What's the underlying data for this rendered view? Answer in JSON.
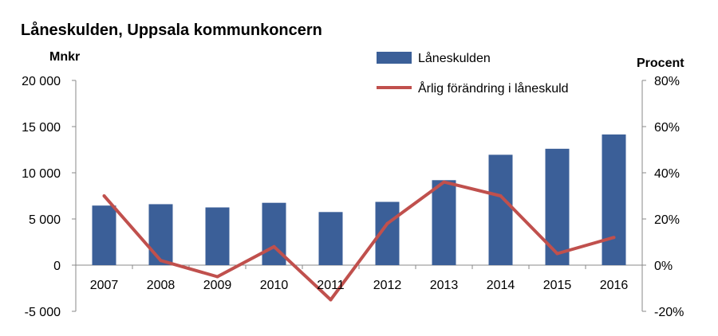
{
  "chart_data": {
    "type": "bar",
    "title": "Låneskulden, Uppsala kommunkoncern",
    "ylabel_left": "Mnkr",
    "ylabel_right": "Procent",
    "categories": [
      "2007",
      "2008",
      "2009",
      "2010",
      "2011",
      "2012",
      "2013",
      "2014",
      "2015",
      "2016"
    ],
    "series": [
      {
        "name": "Låneskulden",
        "type": "bar",
        "axis": "left",
        "color": "#3b5f98",
        "values": [
          6450,
          6600,
          6250,
          6750,
          5750,
          6850,
          9200,
          11950,
          12600,
          14150
        ]
      },
      {
        "name": "Årlig förändring i låneskuld",
        "type": "line",
        "axis": "right",
        "color": "#c0504d",
        "values": [
          30,
          2,
          -5,
          8,
          -15,
          18,
          36,
          30,
          5,
          12
        ]
      }
    ],
    "y_left": {
      "lim": [
        -5000,
        20000
      ],
      "ticks": [
        -5000,
        0,
        5000,
        10000,
        15000,
        20000
      ],
      "tick_labels": [
        "-5 000",
        "0",
        "5 000",
        "10 000",
        "15 000",
        "20 000"
      ]
    },
    "y_right": {
      "lim": [
        -20,
        80
      ],
      "ticks": [
        -20,
        0,
        20,
        40,
        60,
        80
      ],
      "tick_labels": [
        "-20%",
        "0%",
        "20%",
        "40%",
        "60%",
        "80%"
      ]
    },
    "legend_position": "top-right",
    "grid": false
  }
}
